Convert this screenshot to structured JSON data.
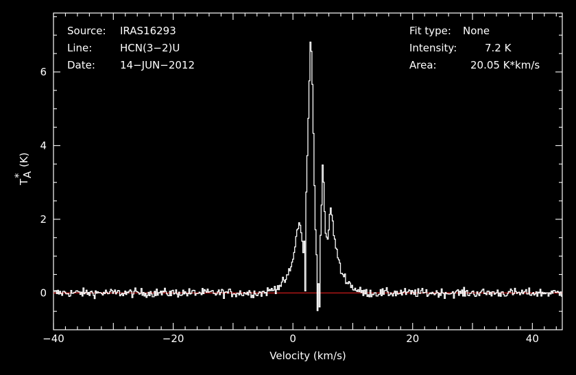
{
  "info": {
    "source_label": "Source:",
    "source_value": "IRAS16293",
    "line_label": "Line:",
    "line_value": "HCN(3−2)U",
    "date_label": "Date:",
    "date_value": "14−JUN−2012",
    "fit_label": "Fit type:",
    "fit_value": "None",
    "intensity_label": "Intensity:",
    "intensity_value": "7.2 K",
    "area_label": "Area:",
    "area_value": "20.05 K*km/s"
  },
  "chart_data": {
    "type": "line",
    "title": "",
    "xlabel": "Velocity (km/s)",
    "ylabel_main": "T",
    "ylabel_sub": "A",
    "ylabel_sup": "*",
    "ylabel_unit": "(K)",
    "xlim": [
      -40,
      45
    ],
    "ylim": [
      -1.0,
      7.6
    ],
    "xticks": [
      -40,
      -20,
      0,
      20,
      40
    ],
    "xtick_labels": [
      "−40",
      "−20",
      "0",
      "20",
      "40"
    ],
    "yticks": [
      0,
      2,
      4,
      6
    ],
    "ytick_labels": [
      "0",
      "2",
      "4",
      "6"
    ],
    "baseline": 0,
    "baseline_color": "#ff2020",
    "line_color": "#ffffff",
    "noise_rms": 0.12,
    "step_kms": 0.17,
    "profile_points": [
      [
        -40,
        0
      ],
      [
        -5,
        0
      ],
      [
        -4,
        0.05
      ],
      [
        -3,
        0.12
      ],
      [
        -2,
        0.22
      ],
      [
        -1,
        0.4
      ],
      [
        0,
        0.85
      ],
      [
        0.6,
        1.6
      ],
      [
        1.2,
        1.95
      ],
      [
        1.8,
        1.0
      ],
      [
        2.2,
        2.5
      ],
      [
        2.6,
        4.8
      ],
      [
        3.0,
        7.2
      ],
      [
        3.3,
        5.5
      ],
      [
        3.7,
        2.0
      ],
      [
        4.0,
        0.8
      ],
      [
        4.3,
        0.3
      ],
      [
        4.6,
        1.5
      ],
      [
        5.0,
        3.6
      ],
      [
        5.4,
        1.8
      ],
      [
        5.8,
        1.3
      ],
      [
        6.3,
        2.4
      ],
      [
        7.0,
        1.4
      ],
      [
        8.0,
        0.6
      ],
      [
        9.0,
        0.35
      ],
      [
        10.0,
        0.15
      ],
      [
        11.0,
        0.05
      ],
      [
        12.0,
        0
      ],
      [
        45,
        0
      ]
    ],
    "absorption_points": [
      [
        2.0,
        0.0
      ],
      [
        4.1,
        -0.48
      ],
      [
        4.4,
        -0.4
      ]
    ]
  }
}
